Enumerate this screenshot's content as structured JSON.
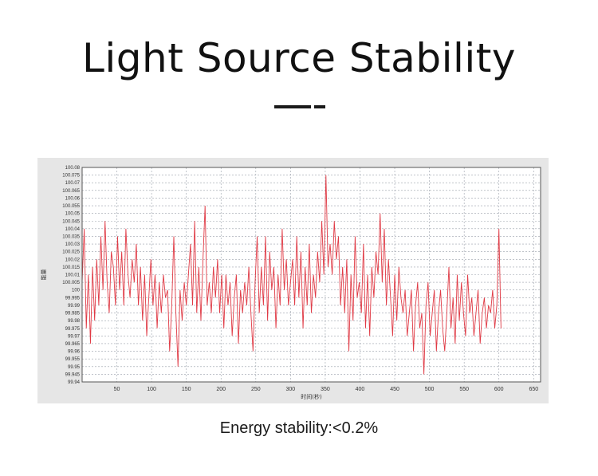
{
  "header": {
    "title": "Light Source Stability"
  },
  "caption": "Energy stability:<0.2%",
  "colors": {
    "line": "#e03a45",
    "plot_bg": "#ffffff",
    "panel_bg": "#e6e6e6",
    "grid": "#9aa0aa"
  },
  "chart_data": {
    "type": "line",
    "title": "",
    "xlabel": "时间(秒)",
    "ylabel": "能量",
    "xlim": [
      0,
      660
    ],
    "ylim": [
      99.94,
      100.08
    ],
    "grid": true,
    "x_ticks": [
      50,
      100,
      150,
      200,
      250,
      300,
      350,
      400,
      450,
      500,
      550,
      600,
      650
    ],
    "y_ticks": [
      "99.94",
      "99.945",
      "99.95",
      "99.955",
      "99.96",
      "99.965",
      "99.97",
      "99.975",
      "99.98",
      "99.985",
      "99.99",
      "99.995",
      "100",
      "100.005",
      "100.01",
      "100.015",
      "100.02",
      "100.025",
      "100.03",
      "100.035",
      "100.04",
      "100.045",
      "100.05",
      "100.055",
      "100.06",
      "100.065",
      "100.07",
      "100.075",
      "100.08"
    ],
    "series": [
      {
        "sample_interval_s": 3,
        "values": [
          100.005,
          100.04,
          99.975,
          100.01,
          99.965,
          100.015,
          99.98,
          100.02,
          99.99,
          100.035,
          100.0,
          100.045,
          100.005,
          99.985,
          100.025,
          100.015,
          99.99,
          100.035,
          100.0,
          100.025,
          99.99,
          100.04,
          100.01,
          99.995,
          100.02,
          100.005,
          100.03,
          99.99,
          100.015,
          99.98,
          100.01,
          99.97,
          99.995,
          100.02,
          99.99,
          100.01,
          99.975,
          100.005,
          99.985,
          100.01,
          99.995,
          100.0,
          99.96,
          99.99,
          100.035,
          99.985,
          99.95,
          100.0,
          99.98,
          100.005,
          99.99,
          100.01,
          100.03,
          99.99,
          100.045,
          99.985,
          100.015,
          99.98,
          100.02,
          100.055,
          99.99,
          100.005,
          99.985,
          100.015,
          99.995,
          100.02,
          99.985,
          100.01,
          99.975,
          100.01,
          99.99,
          100.005,
          99.97,
          99.995,
          100.01,
          99.965,
          100.0,
          99.985,
          100.005,
          99.99,
          100.015,
          99.985,
          99.96,
          100.005,
          100.035,
          99.985,
          100.015,
          99.99,
          100.035,
          99.98,
          100.025,
          100.0,
          100.015,
          99.975,
          100.01,
          99.99,
          100.04,
          100.0,
          100.02,
          99.99,
          100.005,
          100.02,
          99.99,
          100.035,
          99.995,
          100.025,
          99.975,
          100.015,
          99.99,
          100.03,
          99.985,
          100.01,
          99.995,
          100.025,
          100.005,
          100.045,
          100.01,
          100.075,
          100.015,
          100.03,
          100.01,
          100.045,
          100.02,
          100.035,
          99.99,
          100.015,
          99.985,
          100.02,
          99.96,
          100.01,
          99.98,
          100.035,
          99.995,
          100.005,
          99.985,
          100.03,
          99.975,
          100.01,
          99.97,
          100.015,
          99.995,
          100.025,
          100.01,
          100.05,
          100.005,
          100.04,
          99.99,
          100.02,
          99.995,
          99.97,
          100.01,
          99.98,
          100.015,
          99.995,
          99.985,
          100.0,
          99.97,
          99.985,
          100.0,
          99.96,
          99.99,
          100.005,
          99.975,
          99.985,
          99.945,
          99.99,
          100.005,
          99.97,
          99.985,
          100.0,
          99.96,
          99.985,
          100.0,
          99.975,
          99.96,
          99.985,
          100.015,
          99.975,
          99.995,
          99.965,
          100.01,
          99.98,
          100.005,
          99.985,
          99.97,
          100.01,
          99.985,
          99.995,
          99.97,
          99.985,
          100.0,
          99.965,
          99.985,
          99.995,
          99.975,
          99.99,
          99.985,
          100.0,
          99.975,
          99.99,
          100.04,
          99.975
        ]
      }
    ]
  }
}
